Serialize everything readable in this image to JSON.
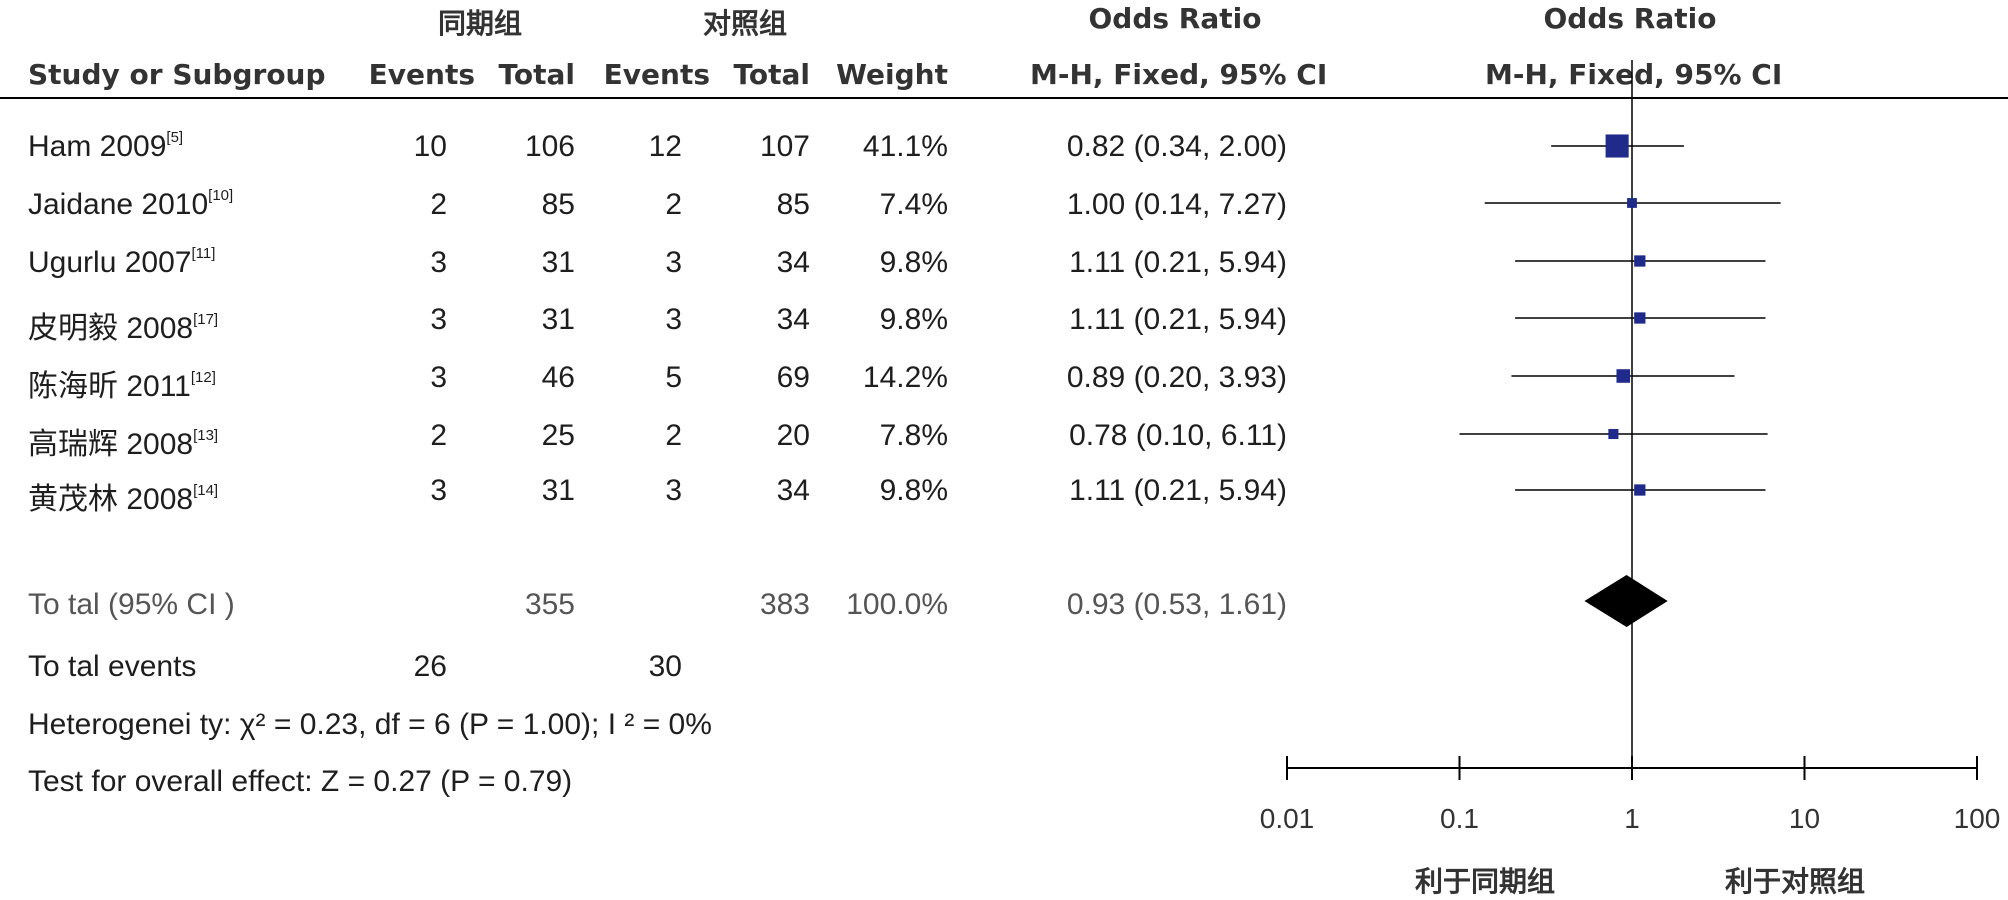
{
  "header": {
    "group1": "同期组",
    "group2": "对照组",
    "or_table": "Odds Ratio",
    "or_plot": "Odds Ratio",
    "study": "Study or Subgroup",
    "events1": "Events",
    "total1": "Total",
    "events2": "Events",
    "total2": "Total",
    "weight": "Weight",
    "method_table": "M-H, Fixed, 95% CI",
    "method_plot": "M-H, Fixed, 95% CI"
  },
  "studies": [
    {
      "name": "Ham 2009",
      "ref": "[5]",
      "e1": "10",
      "n1": "106",
      "e2": "12",
      "n2": "107",
      "weight": "41.1%",
      "ci_text": "0.82 (0.34, 2.00)"
    },
    {
      "name": "Jaidane 2010",
      "ref": "[10]",
      "e1": "2",
      "n1": "85",
      "e2": "2",
      "n2": "85",
      "weight": "7.4%",
      "ci_text": "1.00 (0.14, 7.27)"
    },
    {
      "name": "Ugurlu 2007",
      "ref": "[11]",
      "e1": "3",
      "n1": "31",
      "e2": "3",
      "n2": "34",
      "weight": "9.8%",
      "ci_text": "1.11 (0.21, 5.94)"
    },
    {
      "name": "皮明毅 2008",
      "ref": "[17]",
      "e1": "3",
      "n1": "31",
      "e2": "3",
      "n2": "34",
      "weight": "9.8%",
      "ci_text": "1.11 (0.21, 5.94)"
    },
    {
      "name": "陈海昕 2011",
      "ref": "[12]",
      "e1": "3",
      "n1": "46",
      "e2": "5",
      "n2": "69",
      "weight": "14.2%",
      "ci_text": "0.89 (0.20, 3.93)"
    },
    {
      "name": "高瑞辉 2008",
      "ref": "[13]",
      "e1": "2",
      "n1": "25",
      "e2": "2",
      "n2": "20",
      "weight": "7.8%",
      "ci_text": "0.78 (0.10, 6.11)"
    },
    {
      "name": "黄茂林 2008",
      "ref": "[14]",
      "e1": "3",
      "n1": "31",
      "e2": "3",
      "n2": "34",
      "weight": "9.8%",
      "ci_text": "1.11 (0.21, 5.94)"
    }
  ],
  "total": {
    "label": "To tal (95% CI )",
    "n1": "355",
    "n2": "383",
    "weight": "100.0%",
    "ci_text": "0.93 (0.53, 1.61)"
  },
  "total_events": {
    "label": "To tal events",
    "e1": "26",
    "e2": "30"
  },
  "heterogeneity": "Heterogenei ty: χ² = 0.23, df = 6 (P = 1.00); I ² = 0%",
  "overall_effect": "Test for overall effect: Z = 0.27 (P = 0.79)",
  "axis": {
    "ticks": [
      "0.01",
      "0.1",
      "1",
      "10",
      "100"
    ],
    "left_label": "利于同期组",
    "right_label": "利于对照组"
  },
  "colors": {
    "study_marker": "#1f2a8a",
    "diamond": "#000000",
    "lines": "#000000"
  },
  "chart_data": {
    "type": "forest",
    "title": "Odds Ratio",
    "xlabel": "M-H, Fixed, 95% CI",
    "xscale": "log",
    "xlim": [
      0.01,
      100
    ],
    "reference_line": 1,
    "series": [
      {
        "name": "Ham 2009",
        "or": 0.82,
        "lower": 0.34,
        "upper": 2.0,
        "weight": 41.1
      },
      {
        "name": "Jaidane 2010",
        "or": 1.0,
        "lower": 0.14,
        "upper": 7.27,
        "weight": 7.4
      },
      {
        "name": "Ugurlu 2007",
        "or": 1.11,
        "lower": 0.21,
        "upper": 5.94,
        "weight": 9.8
      },
      {
        "name": "皮明毅 2008",
        "or": 1.11,
        "lower": 0.21,
        "upper": 5.94,
        "weight": 9.8
      },
      {
        "name": "陈海昕 2011",
        "or": 0.89,
        "lower": 0.2,
        "upper": 3.93,
        "weight": 14.2
      },
      {
        "name": "高瑞辉 2008",
        "or": 0.78,
        "lower": 0.1,
        "upper": 6.11,
        "weight": 7.8
      },
      {
        "name": "黄茂林 2008",
        "or": 1.11,
        "lower": 0.21,
        "upper": 5.94,
        "weight": 9.8
      }
    ],
    "pooled": {
      "name": "Total (95% CI)",
      "or": 0.93,
      "lower": 0.53,
      "upper": 1.61
    }
  }
}
